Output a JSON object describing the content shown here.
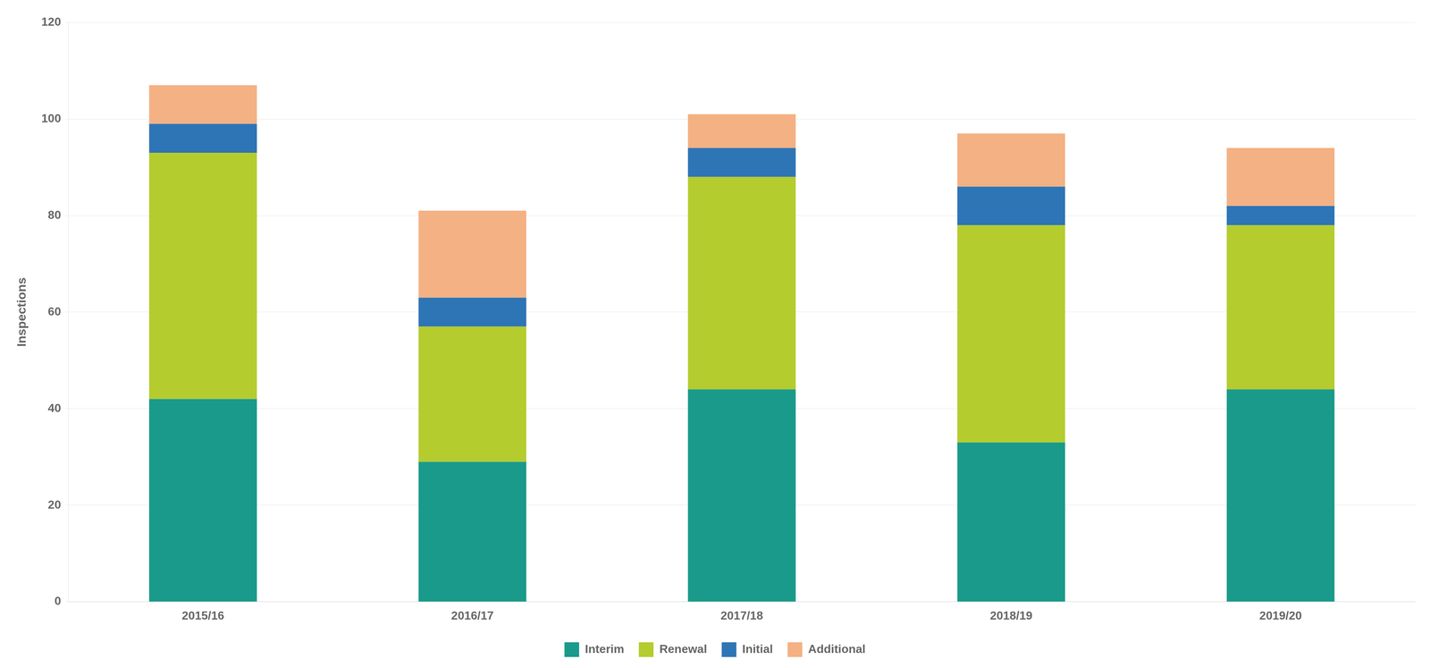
{
  "chart_data": {
    "type": "bar",
    "stacked": true,
    "ylabel": "Inspections",
    "categories": [
      "2015/16",
      "2016/17",
      "2017/18",
      "2018/19",
      "2019/20"
    ],
    "series": [
      {
        "name": "Interim",
        "color": "#1a9a8a",
        "values": [
          42,
          29,
          44,
          33,
          44
        ]
      },
      {
        "name": "Renewal",
        "color": "#b5cc2e",
        "values": [
          51,
          28,
          44,
          45,
          34
        ]
      },
      {
        "name": "Initial",
        "color": "#2e75b6",
        "values": [
          6,
          6,
          6,
          8,
          4
        ]
      },
      {
        "name": "Additional",
        "color": "#f4b183",
        "values": [
          8,
          18,
          7,
          11,
          12
        ]
      }
    ],
    "ylim": [
      0,
      120
    ],
    "yticks": [
      0,
      20,
      40,
      60,
      80,
      100,
      120
    ],
    "grid": true,
    "legend": "bottom"
  }
}
